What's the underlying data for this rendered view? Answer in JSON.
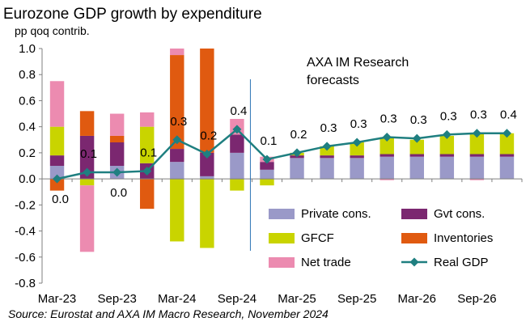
{
  "chart_data": {
    "type": "bar",
    "title": "Eurozone GDP growth by expenditure",
    "subtitle": "pp qoq contrib.",
    "source": "Source: Eurostat and AXA IM Macro Research, November 2024",
    "forecast_note_line1": "AXA IM Research",
    "forecast_note_line2": "forecasts",
    "ylim": [
      -0.8,
      1.0
    ],
    "y_ticks": [
      "-0.8",
      "-0.6",
      "-0.4",
      "-0.2",
      "0.0",
      "0.2",
      "0.4",
      "0.6",
      "0.8",
      "1.0"
    ],
    "x_tick_labels": [
      "Mar-23",
      "Sep-23",
      "Mar-24",
      "Sep-24",
      "Mar-25",
      "Sep-25",
      "Mar-26",
      "Sep-26"
    ],
    "categories": [
      "Mar-23",
      "Jun-23",
      "Sep-23",
      "Dec-23",
      "Mar-24",
      "Jun-24",
      "Sep-24",
      "Dec-24",
      "Mar-25",
      "Jun-25",
      "Sep-25",
      "Dec-25",
      "Mar-26",
      "Jun-26",
      "Sep-26",
      "Dec-26"
    ],
    "forecast_start": "Dec-24",
    "series": [
      {
        "name": "Private cons.",
        "color": "#9a99c8",
        "values": [
          0.1,
          0.0,
          0.1,
          0.0,
          0.13,
          0.02,
          0.2,
          0.07,
          0.16,
          0.16,
          0.16,
          0.17,
          0.17,
          0.17,
          0.17,
          0.17
        ]
      },
      {
        "name": "Gvt cons.",
        "color": "#7b2770",
        "values": [
          0.08,
          0.33,
          0.18,
          0.12,
          0.1,
          0.18,
          0.14,
          0.06,
          0.02,
          0.02,
          0.02,
          0.02,
          0.02,
          0.02,
          0.02,
          0.02
        ]
      },
      {
        "name": "GFCF",
        "color": "#c9d400",
        "values": [
          0.22,
          -0.05,
          0.0,
          0.28,
          -0.48,
          -0.53,
          -0.09,
          -0.05,
          0.02,
          0.07,
          0.1,
          0.13,
          0.11,
          0.14,
          0.16,
          0.16
        ]
      },
      {
        "name": "Inventories",
        "color": "#e05a10",
        "values": [
          -0.09,
          0.19,
          0.05,
          -0.23,
          0.72,
          0.8,
          0.0,
          0.0,
          0.0,
          0.0,
          0.0,
          0.0,
          0.0,
          0.0,
          0.0,
          0.0
        ]
      },
      {
        "name": "Net trade",
        "color": "#ec8bb0",
        "values": [
          0.35,
          -0.51,
          0.17,
          0.11,
          0.05,
          0.0,
          0.12,
          0.04,
          0.0,
          0.0,
          0.0,
          -0.01,
          0.0,
          0.0,
          -0.01,
          0.0
        ]
      }
    ],
    "line": {
      "name": "Real GDP",
      "color": "#1f7f80",
      "values": [
        0.0,
        0.05,
        0.05,
        0.06,
        0.3,
        0.19,
        0.38,
        0.15,
        0.2,
        0.25,
        0.28,
        0.32,
        0.31,
        0.34,
        0.35,
        0.35
      ],
      "labels": [
        "0.0",
        "0.1",
        "0.0",
        "0.1",
        "0.3",
        "0.2",
        "0.4",
        "0.1",
        "0.2",
        "0.3",
        "0.3",
        "0.3",
        "0.3",
        "0.3",
        "0.3",
        "0.4"
      ]
    },
    "legend_position": "bottom-right",
    "grid": false
  }
}
